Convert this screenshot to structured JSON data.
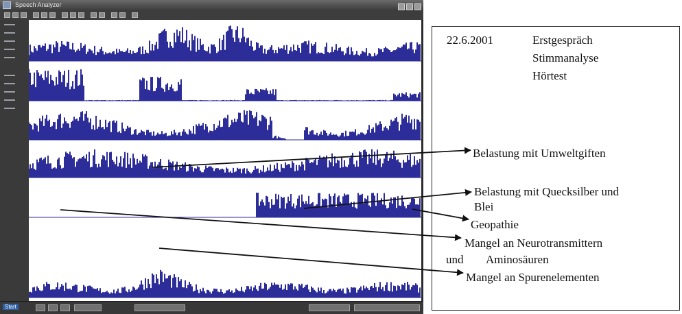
{
  "window": {
    "title": "Speech Analyzer"
  },
  "status_bar": {
    "start_label": "Start"
  },
  "session": {
    "date": "22.6.2001",
    "items": [
      "Erstgespräch",
      "Stimmanalyse",
      "Hörtest"
    ]
  },
  "findings": [
    {
      "id": "umweltgifte",
      "label": "Belastung mit Umweltgiften"
    },
    {
      "id": "quecksilber",
      "label_line1": "Belastung mit Quecksilber und",
      "label_line2": "Blei"
    },
    {
      "id": "geopathie",
      "label": "Geopathie"
    },
    {
      "id": "neurotransmitter",
      "label_line1": "Mangel an Neurotransmittern",
      "label_line2_prefix": "und",
      "label_line2": "Aminosäuren"
    },
    {
      "id": "spurenelemente",
      "label": "Mangel an Spurenelementen"
    }
  ],
  "colors": {
    "waveform": "#2d2d9a",
    "background": "#ffffff",
    "annotation_line": "#111111"
  }
}
